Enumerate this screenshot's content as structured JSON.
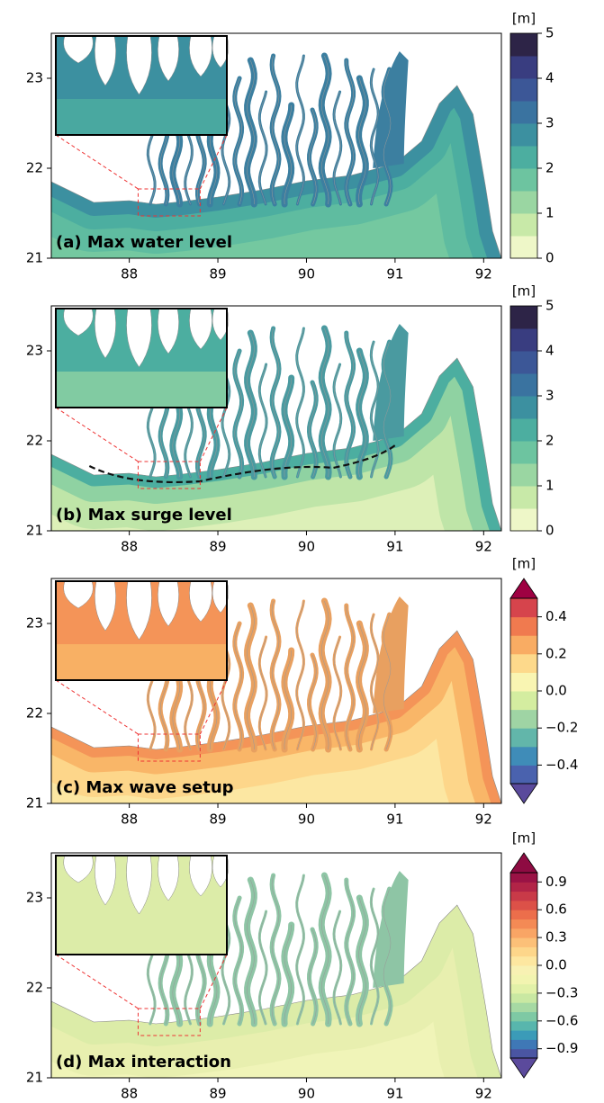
{
  "axes": {
    "xlim": [
      87.12,
      92.2
    ],
    "ylim": [
      21,
      23.5
    ],
    "xticks": [
      88,
      89,
      90,
      91,
      92
    ],
    "yticks": [
      21,
      22,
      23
    ]
  },
  "panels": [
    {
      "label": "(a) Max water level",
      "colorbar": {
        "unit": "[m]",
        "lim": [
          0,
          5
        ],
        "ticks": [
          0,
          1,
          2,
          3,
          4,
          5
        ],
        "colors": [
          "#eef7c8",
          "#c8e9a8",
          "#9ad6a2",
          "#6dc4a0",
          "#4caea0",
          "#3c90a0",
          "#3a73a0",
          "#3c5797",
          "#393d80",
          "#2d2447"
        ],
        "extend": false
      }
    },
    {
      "label": "(b) Max surge level",
      "colorbar": {
        "unit": "[m]",
        "lim": [
          0,
          5
        ],
        "ticks": [
          0,
          1,
          2,
          3,
          4,
          5
        ],
        "colors": [
          "#eef7c8",
          "#c8e9a8",
          "#9ad6a2",
          "#6dc4a0",
          "#4caea0",
          "#3c90a0",
          "#3a73a0",
          "#3c5797",
          "#393d80",
          "#2d2447"
        ],
        "extend": false
      }
    },
    {
      "label": "(c) Max wave setup",
      "colorbar": {
        "unit": "[m]",
        "lim": [
          -0.5,
          0.5
        ],
        "ticks": [
          {
            "value": -0.4,
            "label": "−0.4"
          },
          {
            "value": -0.2,
            "label": "−0.2"
          },
          {
            "value": 0,
            "label": "0.0"
          },
          0.2,
          0.4
        ],
        "colors": [
          "#4a62ae",
          "#3f8cb8",
          "#62b6aa",
          "#9fd4a4",
          "#d4eda0",
          "#f9f5b2",
          "#fdd98b",
          "#f9ac63",
          "#f07a4f",
          "#d6444c"
        ],
        "extend": true,
        "extend_colors": [
          "#5a4a9c",
          "#9e0142"
        ]
      }
    },
    {
      "label": "(d) Max interaction",
      "colorbar": {
        "unit": "[m]",
        "lim": [
          -1,
          1
        ],
        "ticks": [
          {
            "value": -0.9,
            "label": "−0.9"
          },
          {
            "value": -0.6,
            "label": "−0.6"
          },
          {
            "value": -0.3,
            "label": "−0.3"
          },
          {
            "value": 0,
            "label": "0.0"
          },
          0.3,
          0.6,
          0.9
        ],
        "colors": [
          "#4a55a2",
          "#3f78b6",
          "#3b9bb8",
          "#58b6ad",
          "#7ec9a4",
          "#a6d9a3",
          "#c9e8a2",
          "#e2f1a8",
          "#f2f4b0",
          "#f8f1b3",
          "#fde7a0",
          "#fdd68a",
          "#fcc078",
          "#f9a565",
          "#f48a55",
          "#ec6e4b",
          "#dc5148",
          "#c93a48",
          "#b22447",
          "#9a1245"
        ],
        "extend": true,
        "extend_colors": [
          "#5b4a9c",
          "#8e0b42"
        ]
      }
    }
  ]
}
